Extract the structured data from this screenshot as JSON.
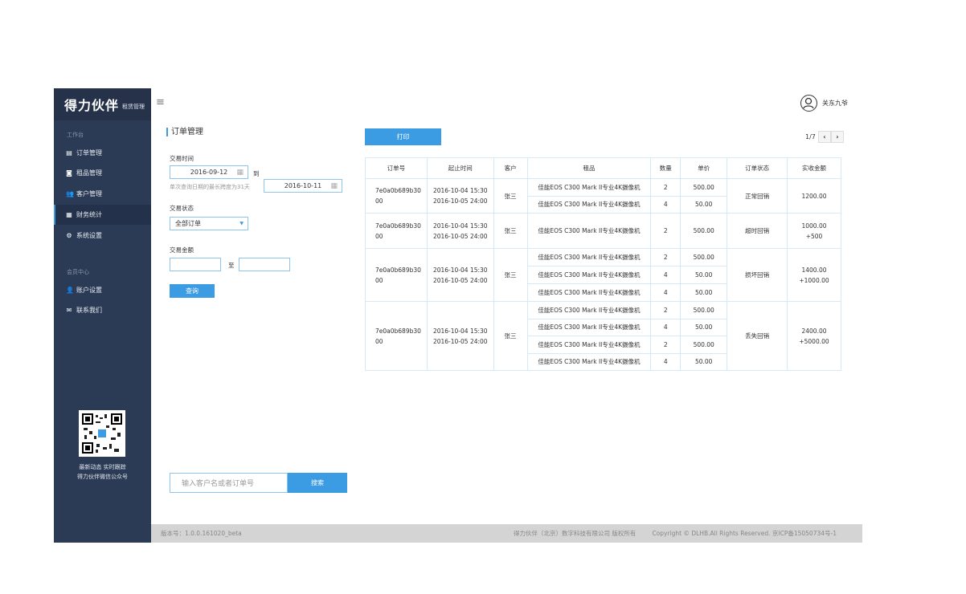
{
  "sidebar": {
    "logo": "得力伙伴",
    "logo_sub": "租赁管理",
    "section1": "工作台",
    "items": [
      {
        "label": "订单管理",
        "icon": "orders-icon"
      },
      {
        "label": "租品管理",
        "icon": "camera-icon"
      },
      {
        "label": "客户管理",
        "icon": "users-icon"
      },
      {
        "label": "财务统计",
        "icon": "finance-icon",
        "active": true
      },
      {
        "label": "系统设置",
        "icon": "gear-icon"
      }
    ],
    "section2": "会员中心",
    "items2": [
      {
        "label": "账户设置",
        "icon": "user-icon"
      },
      {
        "label": "联系我们",
        "icon": "mail-icon"
      }
    ],
    "qr_line1": "最新动态 实时跟踪",
    "qr_line2": "得力伙伴微信公众号"
  },
  "header": {
    "user": "关东九爷"
  },
  "filter": {
    "title": "订单管理",
    "time_label": "交易时间",
    "date_from": "2016-09-12",
    "to": "到",
    "date_to": "2016-10-11",
    "hint": "单次查询日期的最长跨度为31天",
    "status_label": "交易状态",
    "status_value": "全部订单",
    "amount_label": "交易金额",
    "amount_to": "至",
    "amount_from_value": "",
    "amount_to_value": "",
    "query": "查询",
    "search_placeholder": "输入客户名或者订单号",
    "search_btn": "搜索"
  },
  "toolbar": {
    "print": "打印",
    "page": "1/7"
  },
  "table": {
    "headers": [
      "订单号",
      "起止时间",
      "客户",
      "租品",
      "数量",
      "单价",
      "订单状态",
      "实收金额"
    ],
    "orders": [
      {
        "id": "7e0a0b689b3000",
        "start": "2016-10-04  15:30",
        "end": "2016-10-05  24:00",
        "customer": "张三",
        "status": "正常回销",
        "amount": "1200.00",
        "extra": "",
        "items": [
          {
            "name": "佳能EOS C300 Mark II专业4K摄像机",
            "qty": "2",
            "price": "500.00"
          },
          {
            "name": "佳能EOS C300 Mark II专业4K摄像机",
            "qty": "4",
            "price": "50.00"
          }
        ]
      },
      {
        "id": "7e0a0b689b3000",
        "start": "2016-10-04  15:30",
        "end": "2016-10-05  24:00",
        "customer": "张三",
        "status": "超时回销",
        "amount": "1000.00",
        "extra": "+500",
        "items": [
          {
            "name": "佳能EOS C300 Mark II专业4K摄像机",
            "qty": "2",
            "price": "500.00"
          }
        ]
      },
      {
        "id": "7e0a0b689b3000",
        "start": "2016-10-04  15:30",
        "end": "2016-10-05  24:00",
        "customer": "张三",
        "status": "损坏回销",
        "amount": "1400.00",
        "extra": "+1000.00",
        "items": [
          {
            "name": "佳能EOS C300 Mark II专业4K摄像机",
            "qty": "2",
            "price": "500.00"
          },
          {
            "name": "佳能EOS C300 Mark II专业4K摄像机",
            "qty": "4",
            "price": "50.00"
          },
          {
            "name": "佳能EOS C300 Mark II专业4K摄像机",
            "qty": "4",
            "price": "50.00"
          }
        ]
      },
      {
        "id": "7e0a0b689b3000",
        "start": "2016-10-04  15:30",
        "end": "2016-10-05  24:00",
        "customer": "张三",
        "status": "丢失回销",
        "amount": "2400.00",
        "extra": "+5000.00",
        "items": [
          {
            "name": "佳能EOS C300 Mark II专业4K摄像机",
            "qty": "2",
            "price": "500.00"
          },
          {
            "name": "佳能EOS C300 Mark II专业4K摄像机",
            "qty": "4",
            "price": "50.00"
          },
          {
            "name": "佳能EOS C300 Mark II专业4K摄像机",
            "qty": "2",
            "price": "500.00"
          },
          {
            "name": "佳能EOS C300 Mark II专业4K摄像机",
            "qty": "4",
            "price": "50.00"
          }
        ]
      }
    ]
  },
  "footer": {
    "version": "版本号：1.0.0.161020_beta",
    "company": "得力伙伴（北京）数字科技有限公司 版权所有",
    "copyright": "Copyright © DLHB.All Rights Reserved. 京ICP备15050734号-1"
  },
  "colors": {
    "sidebar": "#2b3a55",
    "accent": "#3b9be3",
    "footer": "#d4d4d4"
  }
}
